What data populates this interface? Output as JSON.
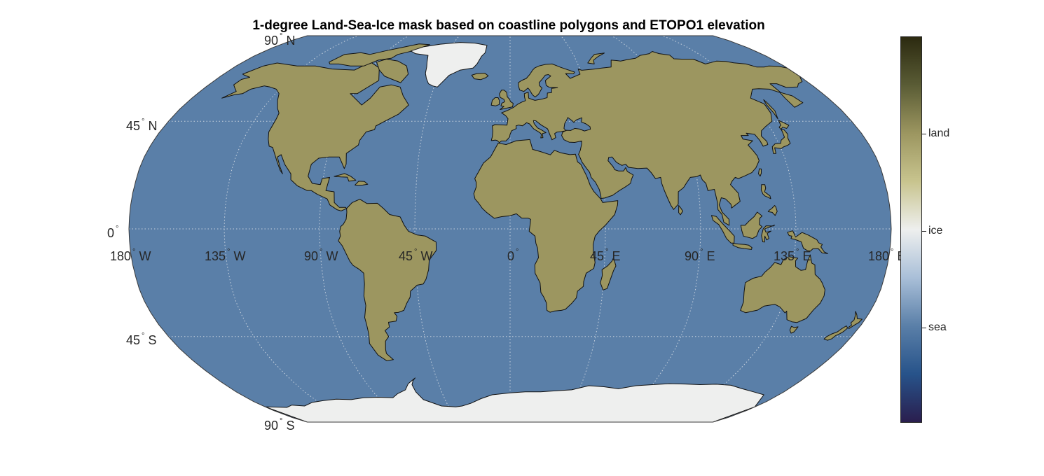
{
  "title": "1-degree Land-Sea-Ice mask based on coastline polygons and ETOPO1 elevation",
  "colors": {
    "sea": "#5a7fa8",
    "land": "#9c9660",
    "ice": "#eeefee",
    "coast": "#111111",
    "grid": "#c8d2de"
  },
  "latitude_labels": {
    "lat_90n": {
      "num": "90",
      "hemi": "N"
    },
    "lat_45n": {
      "num": "45",
      "hemi": "N"
    },
    "lat_0": {
      "num": "0",
      "hemi": ""
    },
    "lat_45s": {
      "num": "45",
      "hemi": "S"
    },
    "lat_90s": {
      "num": "90",
      "hemi": "S"
    }
  },
  "longitude_labels": {
    "lon_180w": {
      "num": "180",
      "hemi": "W"
    },
    "lon_135w": {
      "num": "135",
      "hemi": "W"
    },
    "lon_90w": {
      "num": "90",
      "hemi": "W"
    },
    "lon_45w": {
      "num": "45",
      "hemi": "W"
    },
    "lon_0": {
      "num": "0",
      "hemi": ""
    },
    "lon_45e": {
      "num": "45",
      "hemi": "E"
    },
    "lon_90e": {
      "num": "90",
      "hemi": "E"
    },
    "lon_135e": {
      "num": "135",
      "hemi": "E"
    },
    "lon_180e": {
      "num": "180",
      "hemi": "E"
    }
  },
  "colorbar": {
    "colormap_stops": [
      "#2a1e4e",
      "#27538a",
      "#5a7fa8",
      "#a9bfd8",
      "#eeefee",
      "#c8c48e",
      "#9c9660",
      "#5a5c35",
      "#2c2a10"
    ],
    "labels": {
      "land": "land",
      "ice": "ice",
      "sea": "sea"
    }
  }
}
